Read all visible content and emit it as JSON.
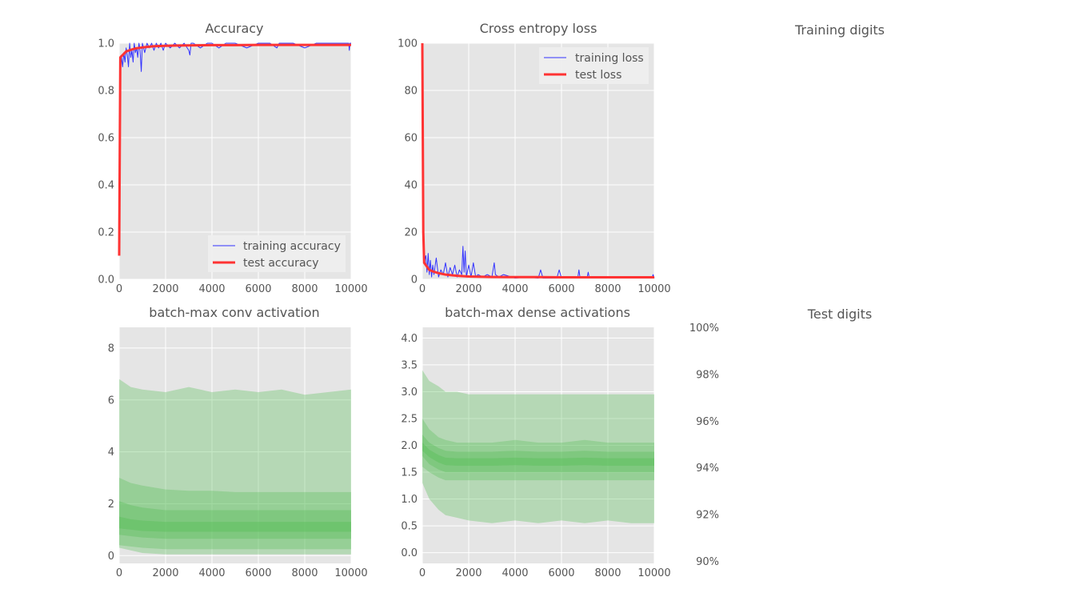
{
  "chart_data": [
    {
      "id": "accuracy",
      "type": "line",
      "title": "Accuracy",
      "xlim": [
        0,
        10000
      ],
      "ylim": [
        0,
        1.0
      ],
      "xticks": [
        "0",
        "2000",
        "4000",
        "6000",
        "8000",
        "10000"
      ],
      "yticks": [
        "0.0",
        "0.2",
        "0.4",
        "0.6",
        "0.8",
        "1.0"
      ],
      "grid": true,
      "legend_position": "bottom-right",
      "series": [
        {
          "name": "training accuracy",
          "color": "#3333ff",
          "x": [
            0,
            20,
            40,
            60,
            80,
            100,
            150,
            200,
            250,
            300,
            350,
            400,
            450,
            500,
            550,
            600,
            650,
            700,
            750,
            800,
            850,
            900,
            950,
            1000,
            1050,
            1100,
            1200,
            1300,
            1400,
            1500,
            1600,
            1700,
            1800,
            1900,
            2000,
            2200,
            2400,
            2600,
            2800,
            3000,
            3050,
            3100,
            3200,
            3500,
            3800,
            4000,
            4300,
            4600,
            5000,
            5500,
            6000,
            6500,
            6800,
            6900,
            7000,
            7500,
            8000,
            8500,
            9000,
            9500,
            9900,
            9920,
            9950,
            10000
          ],
          "y": [
            0.11,
            0.6,
            0.8,
            0.86,
            0.92,
            0.94,
            0.9,
            0.96,
            0.92,
            0.98,
            0.95,
            0.9,
            1.0,
            0.94,
            0.97,
            0.92,
            1.0,
            0.96,
            0.98,
            0.94,
            1.0,
            0.97,
            0.88,
            1.0,
            0.98,
            0.96,
            1.0,
            0.98,
            1.0,
            0.97,
            1.0,
            0.98,
            1.0,
            0.97,
            1.0,
            0.98,
            1.0,
            0.98,
            1.0,
            0.97,
            0.95,
            1.0,
            1.0,
            0.98,
            1.0,
            1.0,
            0.98,
            1.0,
            1.0,
            0.98,
            1.0,
            1.0,
            0.98,
            1.0,
            1.0,
            1.0,
            0.98,
            1.0,
            1.0,
            1.0,
            1.0,
            0.97,
            1.0,
            1.0
          ]
        },
        {
          "name": "test accuracy",
          "color": "#ff3333",
          "x": [
            0,
            50,
            100,
            200,
            300,
            500,
            700,
            1000,
            1500,
            2000,
            2500,
            3000,
            4000,
            5000,
            6000,
            7000,
            8000,
            9000,
            10000
          ],
          "y": [
            0.1,
            0.94,
            0.945,
            0.955,
            0.965,
            0.972,
            0.978,
            0.982,
            0.987,
            0.989,
            0.99,
            0.991,
            0.992,
            0.992,
            0.993,
            0.993,
            0.993,
            0.993,
            0.993
          ]
        }
      ]
    },
    {
      "id": "loss",
      "type": "line",
      "title": "Cross entropy loss",
      "xlim": [
        0,
        10000
      ],
      "ylim": [
        0,
        100
      ],
      "xticks": [
        "0",
        "2000",
        "4000",
        "6000",
        "8000",
        "10000"
      ],
      "yticks": [
        "0",
        "20",
        "40",
        "60",
        "80",
        "100"
      ],
      "grid": true,
      "legend_position": "top-right",
      "series": [
        {
          "name": "training loss",
          "color": "#3333ff",
          "x": [
            0,
            30,
            60,
            100,
            150,
            200,
            250,
            300,
            350,
            400,
            450,
            500,
            600,
            700,
            800,
            900,
            1000,
            1100,
            1200,
            1300,
            1400,
            1500,
            1600,
            1700,
            1750,
            1800,
            1850,
            1900,
            2000,
            2100,
            2200,
            2300,
            2400,
            2600,
            2800,
            3000,
            3100,
            3150,
            3300,
            3500,
            4000,
            4500,
            5000,
            5100,
            5200,
            5800,
            5900,
            6000,
            6700,
            6750,
            6800,
            7100,
            7150,
            7200,
            8000,
            8500,
            9000,
            9900,
            9950,
            10000
          ],
          "y": [
            100,
            30,
            12,
            8,
            10,
            3,
            11,
            2,
            8,
            1,
            6,
            2,
            9,
            1,
            4,
            2,
            7,
            1,
            5,
            2,
            6,
            1,
            4,
            2,
            14,
            3,
            12,
            1,
            6,
            1,
            7,
            1,
            2,
            1,
            2,
            1,
            7,
            2,
            1,
            2,
            0.5,
            1,
            0.5,
            4,
            0.5,
            0.5,
            4,
            0.5,
            0.5,
            4,
            0.5,
            0.5,
            3,
            0.5,
            0.5,
            1,
            0.5,
            0.5,
            2,
            0.5
          ]
        },
        {
          "name": "test loss",
          "color": "#ff3333",
          "x": [
            0,
            40,
            80,
            150,
            300,
            500,
            700,
            1000,
            1500,
            2000,
            3000,
            4000,
            5000,
            6000,
            7000,
            8000,
            9000,
            10000
          ],
          "y": [
            100,
            20,
            7,
            6,
            4,
            3.2,
            2.6,
            2.0,
            1.5,
            1.2,
            1.0,
            0.9,
            0.9,
            0.85,
            0.85,
            0.85,
            0.85,
            0.85
          ]
        }
      ]
    },
    {
      "id": "conv",
      "type": "area",
      "title": "batch-max conv activation",
      "xlim": [
        0,
        10000
      ],
      "ylim": [
        -0.3,
        8.8
      ],
      "xticks": [
        "0",
        "2000",
        "4000",
        "6000",
        "8000",
        "10000"
      ],
      "yticks": [
        "0",
        "2",
        "4",
        "6",
        "8"
      ],
      "grid": true,
      "color": "#5cbf5c",
      "bands": {
        "x": [
          0,
          500,
          1000,
          2000,
          3000,
          4000,
          5000,
          6000,
          7000,
          8000,
          9000,
          10000
        ],
        "outer_low": [
          0.3,
          0.2,
          0.1,
          0.05,
          0.05,
          0.05,
          0.05,
          0.05,
          0.05,
          0.05,
          0.05,
          0.05
        ],
        "outer_high": [
          6.8,
          6.5,
          6.4,
          6.3,
          6.5,
          6.3,
          6.4,
          6.3,
          6.4,
          6.2,
          6.3,
          6.4
        ],
        "mid_low": [
          0.4,
          0.35,
          0.3,
          0.25,
          0.25,
          0.25,
          0.25,
          0.25,
          0.25,
          0.25,
          0.25,
          0.25
        ],
        "mid_high": [
          3.0,
          2.8,
          2.7,
          2.55,
          2.5,
          2.5,
          2.45,
          2.45,
          2.45,
          2.45,
          2.45,
          2.45
        ],
        "inner_low": [
          0.8,
          0.75,
          0.7,
          0.65,
          0.65,
          0.65,
          0.65,
          0.65,
          0.65,
          0.65,
          0.65,
          0.65
        ],
        "inner_high": [
          2.1,
          1.95,
          1.85,
          1.75,
          1.75,
          1.75,
          1.75,
          1.75,
          1.75,
          1.75,
          1.75,
          1.75
        ],
        "median_low": [
          1.05,
          1.0,
          0.95,
          0.92,
          0.92,
          0.92,
          0.92,
          0.92,
          0.92,
          0.92,
          0.92,
          0.92
        ],
        "median_high": [
          1.5,
          1.4,
          1.35,
          1.3,
          1.3,
          1.3,
          1.3,
          1.3,
          1.3,
          1.3,
          1.3,
          1.3
        ]
      }
    },
    {
      "id": "dense",
      "type": "area",
      "title": "batch-max dense activations",
      "xlim": [
        0,
        10000
      ],
      "ylim": [
        -0.2,
        4.2
      ],
      "xticks": [
        "0",
        "2000",
        "4000",
        "6000",
        "8000",
        "10000"
      ],
      "yticks": [
        "0.0",
        "0.5",
        "1.0",
        "1.5",
        "2.0",
        "2.5",
        "3.0",
        "3.5",
        "4.0"
      ],
      "grid": true,
      "color": "#5cbf5c",
      "bands": {
        "x": [
          0,
          300,
          700,
          1000,
          1500,
          2000,
          3000,
          4000,
          5000,
          6000,
          7000,
          8000,
          9000,
          10000
        ],
        "outer_low": [
          1.3,
          1.0,
          0.8,
          0.7,
          0.65,
          0.6,
          0.55,
          0.6,
          0.55,
          0.6,
          0.55,
          0.6,
          0.55,
          0.55
        ],
        "outer_high": [
          3.4,
          3.2,
          3.1,
          3.0,
          3.0,
          2.95,
          2.95,
          2.95,
          2.95,
          2.95,
          2.95,
          2.95,
          2.95,
          2.95
        ],
        "mid_low": [
          1.6,
          1.5,
          1.4,
          1.35,
          1.35,
          1.35,
          1.35,
          1.35,
          1.35,
          1.35,
          1.35,
          1.35,
          1.35,
          1.35
        ],
        "mid_high": [
          2.5,
          2.3,
          2.15,
          2.1,
          2.05,
          2.05,
          2.05,
          2.1,
          2.05,
          2.05,
          2.1,
          2.05,
          2.05,
          2.05
        ],
        "inner_low": [
          1.8,
          1.65,
          1.55,
          1.5,
          1.5,
          1.5,
          1.5,
          1.5,
          1.5,
          1.5,
          1.5,
          1.5,
          1.5,
          1.5
        ],
        "inner_high": [
          2.2,
          2.05,
          1.95,
          1.9,
          1.88,
          1.88,
          1.88,
          1.9,
          1.88,
          1.88,
          1.9,
          1.88,
          1.88,
          1.88
        ],
        "median_low": [
          1.9,
          1.78,
          1.68,
          1.63,
          1.62,
          1.62,
          1.62,
          1.63,
          1.62,
          1.62,
          1.63,
          1.62,
          1.62,
          1.62
        ],
        "median_high": [
          2.05,
          1.92,
          1.82,
          1.77,
          1.76,
          1.76,
          1.76,
          1.77,
          1.76,
          1.76,
          1.77,
          1.76,
          1.76,
          1.76
        ]
      }
    }
  ],
  "panels": {
    "training_digits_title": "Training digits",
    "test_digits_title": "Test digits",
    "test_digits_scale": [
      "100%",
      "98%",
      "96%",
      "94%",
      "92%",
      "90%"
    ]
  }
}
